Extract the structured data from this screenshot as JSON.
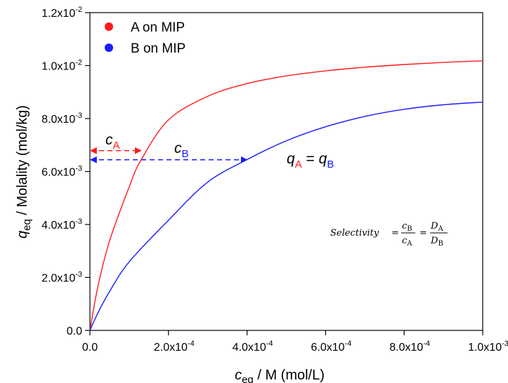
{
  "chart_data": {
    "type": "line",
    "xlabel": {
      "symbol": "c",
      "sub": "eq",
      "rest": " / M (mol/L)"
    },
    "ylabel": {
      "symbol": "q",
      "sub": "eq",
      "rest": " / Molality (mol/kg)"
    },
    "xlim": [
      0,
      0.001
    ],
    "ylim": [
      0,
      0.012
    ],
    "grid": false,
    "legend_position": "top-left",
    "x_ticks": [
      {
        "value": 0,
        "mant": "0.0",
        "exp": ""
      },
      {
        "value": 0.0002,
        "mant": "2.0x10",
        "exp": "-4"
      },
      {
        "value": 0.0004,
        "mant": "4.0x10",
        "exp": "-4"
      },
      {
        "value": 0.0006,
        "mant": "6.0x10",
        "exp": "-4"
      },
      {
        "value": 0.0008,
        "mant": "8.0x10",
        "exp": "-4"
      },
      {
        "value": 0.001,
        "mant": "1.0x10",
        "exp": "-3"
      }
    ],
    "y_ticks": [
      {
        "value": 0,
        "mant": "0.0",
        "exp": ""
      },
      {
        "value": 0.002,
        "mant": "2.0x10",
        "exp": "-3"
      },
      {
        "value": 0.004,
        "mant": "4.0x10",
        "exp": "-3"
      },
      {
        "value": 0.006,
        "mant": "6.0x10",
        "exp": "-3"
      },
      {
        "value": 0.008,
        "mant": "8.0x10",
        "exp": "-3"
      },
      {
        "value": 0.01,
        "mant": "1.0x10",
        "exp": "-2"
      },
      {
        "value": 0.012,
        "mant": "1.2x10",
        "exp": "-2"
      }
    ],
    "series": [
      {
        "name": "A on MIP",
        "color": "#ff1a1a",
        "x": [
          0,
          2e-05,
          5e-05,
          0.0001,
          0.00013,
          0.0002,
          0.0003,
          0.0004,
          0.0005,
          0.0006,
          0.0007,
          0.0008,
          0.0009,
          0.001
        ],
        "y": [
          0,
          0.00164,
          0.00338,
          0.00542,
          0.00643,
          0.00795,
          0.00884,
          0.00932,
          0.00961,
          0.0098,
          0.00994,
          0.01004,
          0.01012,
          0.01018
        ]
      },
      {
        "name": "B on MIP",
        "color": "#1a1aff",
        "x": [
          0,
          2e-05,
          5e-05,
          0.0001,
          0.0002,
          0.0003,
          0.0004,
          0.0005,
          0.0006,
          0.0007,
          0.0008,
          0.0009,
          0.001
        ],
        "y": [
          0,
          0.00065,
          0.00147,
          0.00259,
          0.00416,
          0.0056,
          0.00645,
          0.00716,
          0.00769,
          0.00808,
          0.00835,
          0.00852,
          0.00862
        ]
      }
    ],
    "annotations": {
      "arrow_y": 0.00647,
      "cA_x_end": 0.00013,
      "cB_x_end": 0.0004,
      "cA_label": {
        "symbol": "c",
        "sub": "A"
      },
      "cB_label": {
        "symbol": "c",
        "sub": "B"
      },
      "equality": {
        "lhs": "q",
        "lhs_sub": "A",
        "eq": " = ",
        "rhs": "q",
        "rhs_sub": "B"
      },
      "selectivity": {
        "word": "Selectivity",
        "frac1_num": "c",
        "frac1_num_sub": "B",
        "frac1_den": "c",
        "frac1_den_sub": "A",
        "frac2_num": "D",
        "frac2_num_sub": "A",
        "frac2_den": "D",
        "frac2_den_sub": "B"
      }
    }
  }
}
